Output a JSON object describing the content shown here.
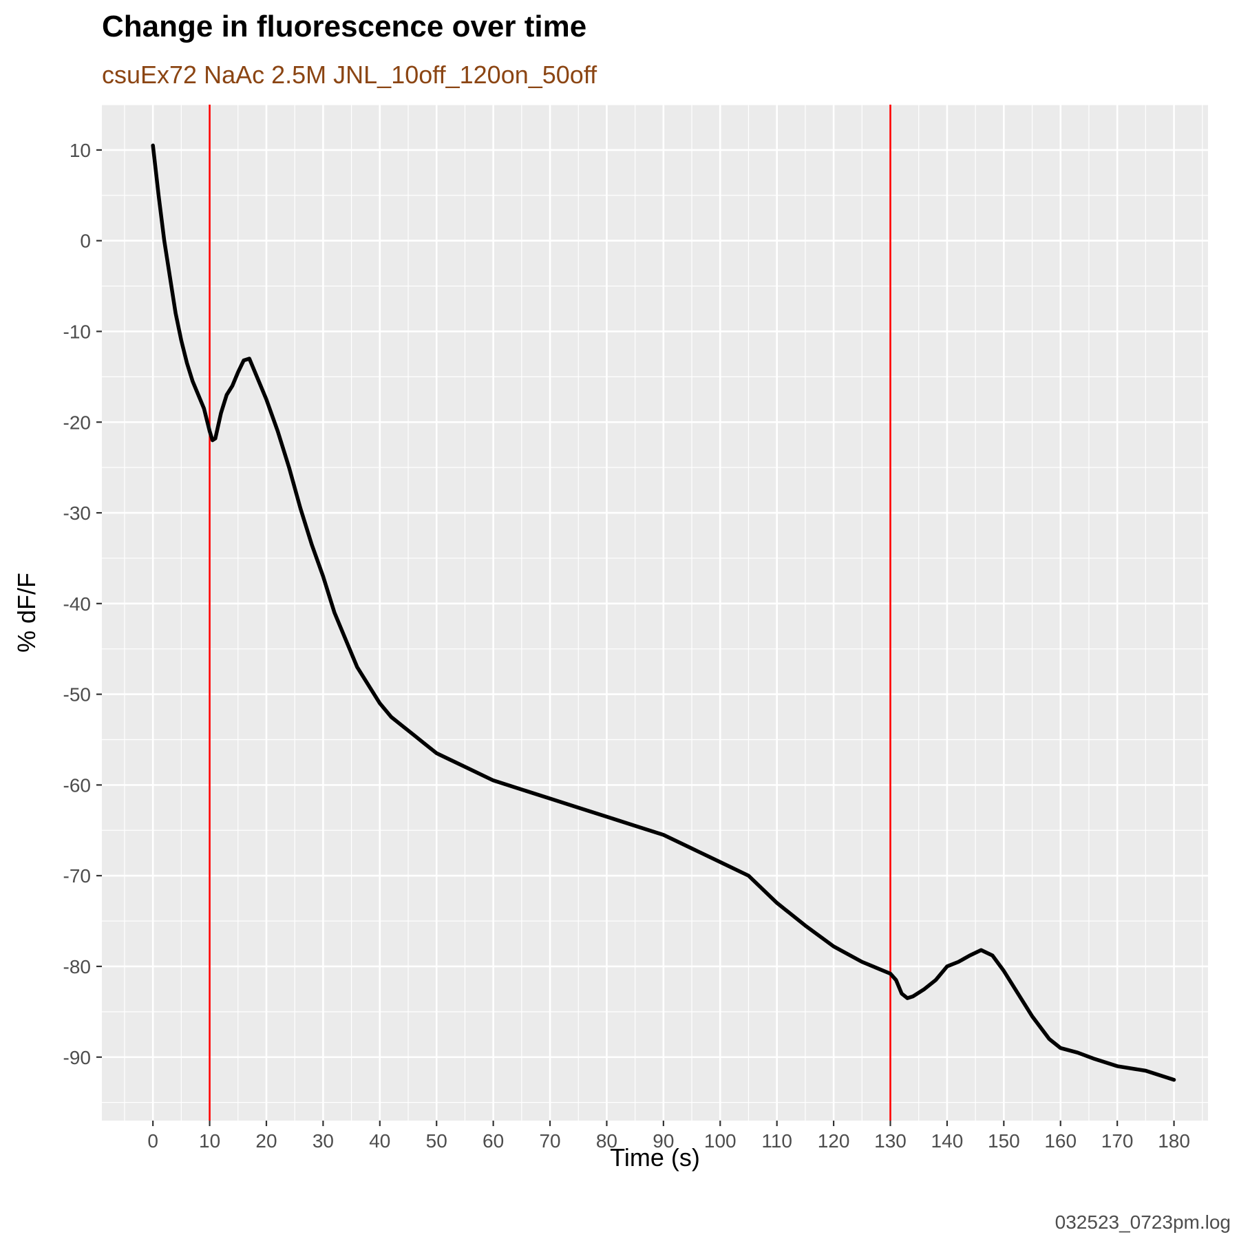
{
  "chart_data": {
    "type": "line",
    "title": "Change in fluorescence over time",
    "subtitle": "csuEx72 NaAc 2.5M JNL_10off_120on_50off",
    "caption": "032523_0723pm.log",
    "xlabel": "Time (s)",
    "ylabel": "% dF/F",
    "xlim": [
      -9,
      186
    ],
    "ylim": [
      -97,
      15
    ],
    "x_ticks": [
      0,
      10,
      20,
      30,
      40,
      50,
      60,
      70,
      80,
      90,
      100,
      110,
      120,
      130,
      140,
      150,
      160,
      170,
      180
    ],
    "x_tick_labels": [
      "0",
      "10",
      "20",
      "30",
      "40",
      "50",
      "60",
      "70",
      "80",
      "90",
      "100",
      "110",
      "120",
      "130",
      "140",
      "150",
      "160",
      "170",
      "180"
    ],
    "y_ticks": [
      10,
      0,
      -10,
      -20,
      -30,
      -40,
      -50,
      -60,
      -70,
      -80,
      -90
    ],
    "y_tick_labels": [
      "10",
      "0",
      "-10",
      "-20",
      "-30",
      "-40",
      "-50",
      "-60",
      "-70",
      "-80",
      "-90"
    ],
    "grid": true,
    "colors": {
      "panel_background": "#EBEBEB",
      "grid": "#FFFFFF",
      "line": "#000000",
      "vlines": "#FF0000",
      "subtitle": "#8B4513"
    },
    "vlines": [
      10,
      130
    ],
    "series": [
      {
        "x": [
          0,
          1,
          2,
          3,
          4,
          5,
          6,
          7,
          8,
          9,
          10,
          10.5,
          11,
          12,
          13,
          14,
          15,
          16,
          17,
          18,
          19,
          20,
          22,
          24,
          26,
          28,
          30,
          32,
          34,
          36,
          38,
          40,
          42,
          44,
          46,
          48,
          50,
          55,
          60,
          65,
          70,
          75,
          80,
          85,
          90,
          95,
          100,
          105,
          110,
          115,
          120,
          125,
          130,
          131,
          132,
          133,
          134,
          136,
          138,
          140,
          142,
          144,
          146,
          148,
          150,
          152,
          155,
          158,
          160,
          163,
          166,
          170,
          175,
          180
        ],
        "y": [
          10.5,
          5,
          0,
          -4,
          -8,
          -11,
          -13.5,
          -15.5,
          -17,
          -18.5,
          -21,
          -22,
          -21.8,
          -19,
          -17,
          -16,
          -14.5,
          -13.2,
          -13,
          -14.5,
          -16,
          -17.5,
          -21,
          -25,
          -29.5,
          -33.5,
          -37,
          -41,
          -44,
          -47,
          -49,
          -51,
          -52.5,
          -53.5,
          -54.5,
          -55.5,
          -56.5,
          -58,
          -59.5,
          -60.5,
          -61.5,
          -62.5,
          -63.5,
          -64.5,
          -65.5,
          -67,
          -68.5,
          -70,
          -73,
          -75.5,
          -77.8,
          -79.5,
          -80.8,
          -81.5,
          -83,
          -83.5,
          -83.3,
          -82.5,
          -81.5,
          -80,
          -79.5,
          -78.8,
          -78.2,
          -78.8,
          -80.5,
          -82.5,
          -85.5,
          -88,
          -89,
          -89.5,
          -90.2,
          -91,
          -91.5,
          -92.5
        ]
      }
    ]
  }
}
